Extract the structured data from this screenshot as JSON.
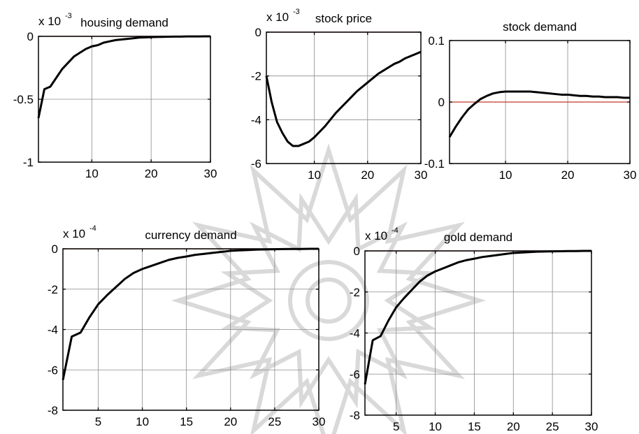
{
  "colors": {
    "series": "#000000",
    "zero_line": "#c0392b",
    "grid": "#8c8c8c",
    "watermark": "#d9d9d9"
  },
  "watermark": {
    "icon": "ornamental-star-watermark"
  },
  "chart_data": [
    {
      "type": "line",
      "title": "housing demand",
      "multiplier_text": "x 10",
      "multiplier_exp": "-3",
      "xlim": [
        1,
        30
      ],
      "ylim": [
        -1,
        0
      ],
      "xticks": [
        10,
        20,
        30
      ],
      "yticks": [
        0,
        -0.5,
        -1
      ],
      "ytick_labels": [
        "0",
        "-0.5",
        "-1"
      ],
      "grid": true,
      "zero_line": true,
      "x": [
        1,
        2,
        3,
        4,
        5,
        6,
        7,
        8,
        9,
        10,
        11,
        12,
        13,
        14,
        15,
        16,
        17,
        18,
        19,
        20,
        21,
        22,
        23,
        24,
        25,
        26,
        27,
        28,
        29,
        30
      ],
      "y": [
        -0.65,
        -0.42,
        -0.4,
        -0.33,
        -0.26,
        -0.21,
        -0.16,
        -0.13,
        -0.1,
        -0.08,
        -0.07,
        -0.05,
        -0.04,
        -0.03,
        -0.025,
        -0.02,
        -0.015,
        -0.01,
        -0.008,
        -0.006,
        -0.005,
        -0.004,
        -0.003,
        -0.002,
        -0.002,
        -0.001,
        -0.001,
        -0.001,
        0,
        0
      ]
    },
    {
      "type": "line",
      "title": "stock price",
      "multiplier_text": "x 10",
      "multiplier_exp": "-3",
      "xlim": [
        1,
        30
      ],
      "ylim": [
        -6,
        0
      ],
      "xticks": [
        10,
        20,
        30
      ],
      "yticks": [
        0,
        -2,
        -4,
        -6
      ],
      "ytick_labels": [
        "0",
        "-2",
        "-4",
        "-6"
      ],
      "grid": true,
      "zero_line": true,
      "x": [
        1,
        2,
        3,
        4,
        5,
        6,
        7,
        8,
        9,
        10,
        11,
        12,
        13,
        14,
        15,
        16,
        17,
        18,
        19,
        20,
        21,
        22,
        23,
        24,
        25,
        26,
        27,
        28,
        29,
        30
      ],
      "y": [
        -2.0,
        -3.2,
        -4.1,
        -4.6,
        -5.0,
        -5.2,
        -5.2,
        -5.1,
        -5.0,
        -4.8,
        -4.55,
        -4.3,
        -4.0,
        -3.7,
        -3.45,
        -3.2,
        -2.95,
        -2.7,
        -2.5,
        -2.3,
        -2.1,
        -1.9,
        -1.75,
        -1.6,
        -1.45,
        -1.35,
        -1.2,
        -1.1,
        -1.0,
        -0.9
      ]
    },
    {
      "type": "line",
      "title": "stock demand",
      "xlim": [
        1,
        30
      ],
      "ylim": [
        -0.1,
        0.1
      ],
      "xticks": [
        10,
        20,
        30
      ],
      "yticks": [
        0.1,
        0,
        -0.1
      ],
      "ytick_labels": [
        "0.1",
        "0",
        "-0.1"
      ],
      "grid": true,
      "zero_line": true,
      "x": [
        1,
        2,
        3,
        4,
        5,
        6,
        7,
        8,
        9,
        10,
        11,
        12,
        13,
        14,
        15,
        16,
        17,
        18,
        19,
        20,
        21,
        22,
        23,
        24,
        25,
        26,
        27,
        28,
        29,
        30
      ],
      "y": [
        -0.057,
        -0.04,
        -0.025,
        -0.012,
        -0.003,
        0.005,
        0.01,
        0.014,
        0.016,
        0.017,
        0.017,
        0.017,
        0.017,
        0.017,
        0.016,
        0.015,
        0.014,
        0.013,
        0.012,
        0.012,
        0.011,
        0.01,
        0.01,
        0.009,
        0.009,
        0.008,
        0.008,
        0.008,
        0.007,
        0.007
      ]
    },
    {
      "type": "line",
      "title": "currency demand",
      "multiplier_text": "x 10",
      "multiplier_exp": "-4",
      "xlim": [
        1,
        30
      ],
      "ylim": [
        -8,
        0
      ],
      "xticks": [
        5,
        10,
        15,
        20,
        25,
        30
      ],
      "yticks": [
        0,
        -2,
        -4,
        -6,
        -8
      ],
      "ytick_labels": [
        "0",
        "-2",
        "-4",
        "-6",
        "-8"
      ],
      "grid": true,
      "zero_line": true,
      "x": [
        1,
        2,
        3,
        4,
        5,
        6,
        7,
        8,
        9,
        10,
        11,
        12,
        13,
        14,
        15,
        16,
        17,
        18,
        19,
        20,
        21,
        22,
        23,
        24,
        25,
        26,
        27,
        28,
        29,
        30
      ],
      "y": [
        -6.5,
        -4.35,
        -4.15,
        -3.4,
        -2.75,
        -2.3,
        -1.9,
        -1.5,
        -1.2,
        -1.0,
        -0.85,
        -0.7,
        -0.55,
        -0.45,
        -0.38,
        -0.3,
        -0.25,
        -0.2,
        -0.15,
        -0.1,
        -0.08,
        -0.06,
        -0.04,
        -0.03,
        -0.02,
        -0.015,
        -0.01,
        -0.01,
        0,
        0
      ]
    },
    {
      "type": "line",
      "title": "gold demand",
      "multiplier_text": "x 10",
      "multiplier_exp": "-4",
      "xlim": [
        1,
        30
      ],
      "ylim": [
        -8,
        0
      ],
      "xticks": [
        5,
        10,
        15,
        20,
        25,
        30
      ],
      "yticks": [
        0,
        -2,
        -4,
        -6,
        -8
      ],
      "ytick_labels": [
        "0",
        "-2",
        "-4",
        "-6",
        "-8"
      ],
      "grid": true,
      "zero_line": true,
      "x": [
        1,
        2,
        3,
        4,
        5,
        6,
        7,
        8,
        9,
        10,
        11,
        12,
        13,
        14,
        15,
        16,
        17,
        18,
        19,
        20,
        21,
        22,
        23,
        24,
        25,
        26,
        27,
        28,
        29,
        30
      ],
      "y": [
        -6.5,
        -4.35,
        -4.15,
        -3.4,
        -2.75,
        -2.3,
        -1.9,
        -1.5,
        -1.2,
        -1.0,
        -0.85,
        -0.7,
        -0.55,
        -0.45,
        -0.38,
        -0.3,
        -0.25,
        -0.2,
        -0.15,
        -0.1,
        -0.08,
        -0.06,
        -0.04,
        -0.03,
        -0.02,
        -0.015,
        -0.01,
        -0.01,
        0,
        0
      ]
    }
  ]
}
